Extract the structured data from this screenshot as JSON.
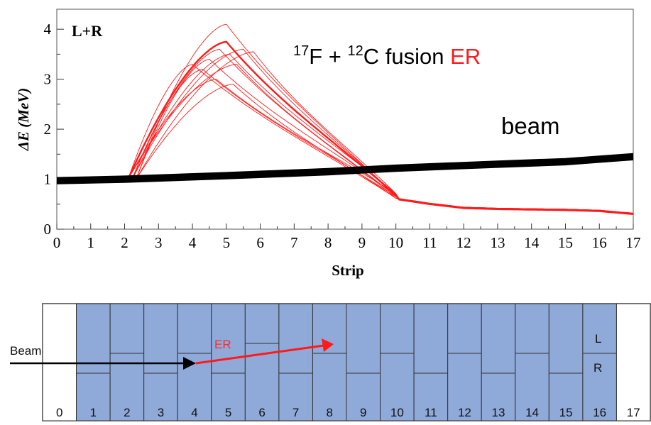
{
  "chart_data": {
    "type": "line",
    "panel_label": "L+R",
    "title": {
      "part1": "F + ",
      "sup1": "17",
      "sup2": "12",
      "part2": "C fusion ",
      "highlight": "ER"
    },
    "annotation_beam": "beam",
    "xlabel": "Strip",
    "ylabel": "ΔE (MeV)",
    "xlim": [
      0,
      17
    ],
    "ylim": [
      0,
      4.4
    ],
    "xticks": [
      "0",
      "1",
      "2",
      "3",
      "4",
      "5",
      "6",
      "7",
      "8",
      "9",
      "10",
      "11",
      "12",
      "13",
      "14",
      "15",
      "16",
      "17"
    ],
    "yticks": [
      "0",
      "1",
      "2",
      "3",
      "4"
    ],
    "series": [
      {
        "label": "ER",
        "color": "#ff1a1a",
        "x": [
          0,
          1,
          2,
          3,
          4,
          5,
          6,
          7,
          8,
          9,
          10,
          11,
          12,
          13,
          14,
          15,
          16,
          17
        ],
        "family_peaks": [
          {
            "peak_x": 4.0,
            "peak_y": 3.3
          },
          {
            "peak_x": 4.3,
            "peak_y": 3.2
          },
          {
            "peak_x": 4.5,
            "peak_y": 3.4
          },
          {
            "peak_x": 4.7,
            "peak_y": 3.0
          },
          {
            "peak_x": 4.8,
            "peak_y": 3.6
          },
          {
            "peak_x": 5.0,
            "peak_y": 4.1
          },
          {
            "peak_x": 5.0,
            "peak_y": 3.75
          },
          {
            "peak_x": 5.1,
            "peak_y": 3.5
          },
          {
            "peak_x": 5.2,
            "peak_y": 2.9
          },
          {
            "peak_x": 5.3,
            "peak_y": 3.3
          },
          {
            "peak_x": 5.5,
            "peak_y": 3.6
          },
          {
            "peak_x": 5.8,
            "peak_y": 3.55
          }
        ],
        "tail_values": {
          "2": 1.0,
          "9": 0.8,
          "10": 0.6,
          "11": 0.5,
          "12": 0.42,
          "13": 0.4,
          "14": 0.39,
          "15": 0.38,
          "16": 0.36,
          "17": 0.3
        }
      },
      {
        "label": "beam",
        "color": "#000000",
        "x": [
          0,
          2,
          5,
          8,
          10,
          13,
          15,
          16,
          17
        ],
        "y": [
          0.97,
          1.0,
          1.07,
          1.15,
          1.22,
          1.3,
          1.35,
          1.4,
          1.45
        ]
      }
    ],
    "grid": false
  },
  "detector": {
    "beam_label": "Beam",
    "er_label": "ER",
    "left_label": "L",
    "right_label": "R",
    "strip_numbers": [
      "0",
      "1",
      "2",
      "3",
      "4",
      "5",
      "6",
      "7",
      "8",
      "9",
      "10",
      "11",
      "12",
      "13",
      "14",
      "15",
      "16",
      "17"
    ],
    "strip_fill": "#8fa9d9",
    "split_heights": [
      0,
      0.7,
      0.5,
      0.7,
      0.5,
      0.7,
      0.4,
      0.7,
      0.5,
      0.7,
      0.5,
      0.7,
      0.5,
      0.7,
      0.5,
      0.7,
      0.5,
      0
    ]
  }
}
